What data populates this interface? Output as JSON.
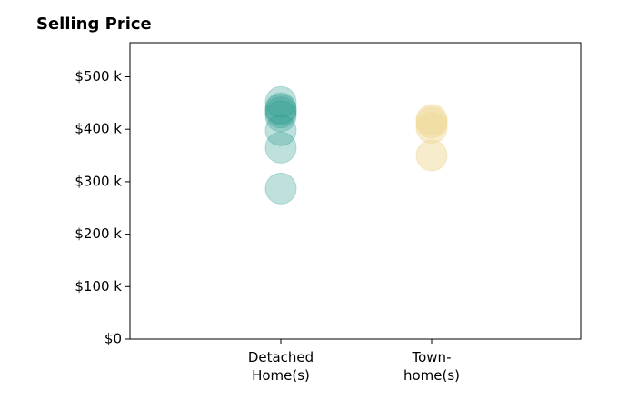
{
  "chart_data": {
    "type": "scatter",
    "title": "Selling Price",
    "xlabel": "",
    "ylabel": "",
    "categories": [
      {
        "label_lines": [
          "Detached",
          "Home(s)"
        ]
      },
      {
        "label_lines": [
          "Town-",
          "home(s)"
        ]
      }
    ],
    "ylim": [
      0,
      565000
    ],
    "yticks": [
      {
        "value": 0,
        "label": "$0"
      },
      {
        "value": 100000,
        "label": "$100 k"
      },
      {
        "value": 200000,
        "label": "$200 k"
      },
      {
        "value": 300000,
        "label": "$300 k"
      },
      {
        "value": 400000,
        "label": "$400 k"
      },
      {
        "value": 500000,
        "label": "$500 k"
      }
    ],
    "series": [
      {
        "color": "#2a9d8f",
        "opacity": 0.3,
        "category_index": 0,
        "values": [
          287000,
          365000,
          398000,
          425000,
          432000,
          437000,
          440000,
          452000
        ]
      },
      {
        "color": "#f0d99a",
        "opacity": 0.5,
        "category_index": 1,
        "values": [
          350000,
          403000,
          413000,
          418000
        ]
      }
    ],
    "grid": false,
    "legend": "none"
  }
}
